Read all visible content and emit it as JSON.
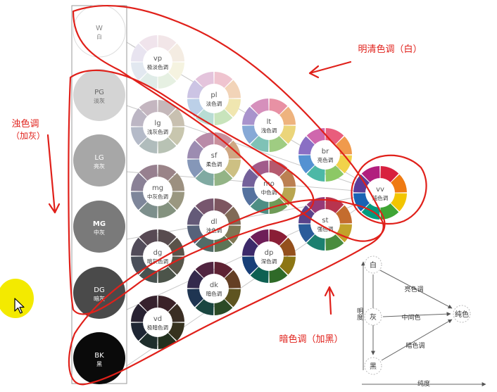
{
  "neutrals": [
    {
      "code": "W",
      "name": "白",
      "color": "#ffffff",
      "text_color": "#888888"
    },
    {
      "code": "PG",
      "name": "淡灰",
      "color": "#d4d4d4",
      "text_color": "#666666"
    },
    {
      "code": "LG",
      "name": "亮灰",
      "color": "#a7a7a7",
      "text_color": "#ffffff"
    },
    {
      "code": "MG",
      "name": "中灰",
      "color": "#7a7a7a",
      "text_color": "#ffffff"
    },
    {
      "code": "DG",
      "name": "暗灰",
      "color": "#4a4a4a",
      "text_color": "#ffffff"
    },
    {
      "code": "BK",
      "name": "黑",
      "color": "#0a0a0a",
      "text_color": "#ffffff"
    }
  ],
  "tones": [
    {
      "code": "vp",
      "name": "极淡色调",
      "palette": [
        "#f2e6e8",
        "#f4ece2",
        "#f5f3e0",
        "#e6f0e2",
        "#e0ece8",
        "#e2e8f0",
        "#e8e4f0",
        "#f0e4ec"
      ]
    },
    {
      "code": "pl",
      "name": "淡色调",
      "palette": [
        "#efc4cf",
        "#f2d4b8",
        "#f0e6b0",
        "#c8e4bc",
        "#b8dcd4",
        "#bcd0e8",
        "#ccc4e4",
        "#e4c4dc"
      ]
    },
    {
      "code": "lg",
      "name": "浅灰色调",
      "palette": [
        "#c4b8ba",
        "#c8c0b0",
        "#c8c6ae",
        "#b8c2b4",
        "#b0bcbc",
        "#b4bac8",
        "#bcb6c4",
        "#c4b6c0"
      ]
    },
    {
      "code": "lt",
      "name": "浅色调",
      "palette": [
        "#e891a4",
        "#eeb37e",
        "#ebd57a",
        "#9fcc82",
        "#7fc2b6",
        "#86a9d6",
        "#a993cc",
        "#d690bc"
      ]
    },
    {
      "code": "sf",
      "name": "柔色调",
      "palette": [
        "#c98f9b",
        "#cfa783",
        "#cdc083",
        "#93b486",
        "#80aaa2",
        "#8597b8",
        "#9c8cb1",
        "#b98ba8"
      ]
    },
    {
      "code": "mg",
      "name": "中灰色调",
      "palette": [
        "#9a8488",
        "#9c9080",
        "#9a9780",
        "#84927f",
        "#7d8f8c",
        "#7e869a",
        "#8a8196",
        "#97808f"
      ]
    },
    {
      "code": "br",
      "name": "亮色调",
      "palette": [
        "#e95d7c",
        "#f09a4c",
        "#f1d24a",
        "#8cc865",
        "#4db8a6",
        "#5492d2",
        "#8a6fc4",
        "#cf67ad"
      ]
    },
    {
      "code": "mo",
      "name": "中色调",
      "palette": [
        "#b55a6e",
        "#bb8052",
        "#b9a650",
        "#6f9b58",
        "#4e8e84",
        "#55729f",
        "#74619a",
        "#a15b8b"
      ]
    },
    {
      "code": "dl",
      "name": "浊色调",
      "palette": [
        "#7d5660",
        "#806a56",
        "#7e7754",
        "#5e7456",
        "#526c68",
        "#56627a",
        "#645a78",
        "#77566e"
      ]
    },
    {
      "code": "dg",
      "name": "暗灰色调",
      "palette": [
        "#584c4f",
        "#5a5349",
        "#58564a",
        "#4c544a",
        "#485250",
        "#4a4f5a",
        "#524c5a",
        "#584a54"
      ]
    },
    {
      "code": "vv",
      "name": "纯色调",
      "palette": [
        "#d8203e",
        "#ef7a12",
        "#f2c500",
        "#3fa535",
        "#009a7e",
        "#1a63b4",
        "#5b3b98",
        "#b11f7e"
      ]
    },
    {
      "code": "st",
      "name": "强色调",
      "palette": [
        "#b8344e",
        "#c46c2e",
        "#c2a22a",
        "#4a8c3e",
        "#1c8070",
        "#2a5c9a",
        "#5a428a",
        "#963a78"
      ]
    },
    {
      "code": "dp",
      "name": "深色调",
      "palette": [
        "#8a1e36",
        "#94501c",
        "#8c7614",
        "#2f6a28",
        "#0e6052",
        "#173f78",
        "#3c2a6a",
        "#6e1e58"
      ]
    },
    {
      "code": "dk",
      "name": "暗色调",
      "palette": [
        "#5e2233",
        "#643f24",
        "#5e5420",
        "#2c4a26",
        "#1a4640",
        "#1f3552",
        "#342a4c",
        "#502440"
      ]
    },
    {
      "code": "vd",
      "name": "极暗色调",
      "palette": [
        "#3a2228",
        "#3a2e24",
        "#36321e",
        "#22301e",
        "#1e2e2c",
        "#1e2634",
        "#282232",
        "#36222e"
      ]
    }
  ],
  "labels": {
    "bright": "明清色调（白）",
    "dull": "浊色调",
    "dull_sub": "（加灰）",
    "dark": "暗色调（加黑）"
  },
  "legend": {
    "white": "白",
    "gray": "灰",
    "black": "黑",
    "pure": "纯色",
    "bright_tone": "亮色调",
    "mid_tone": "中间色",
    "dark_tone": "暗色调",
    "lightness": "明度",
    "chroma": "纯度"
  },
  "annotation_color": "#e0201a"
}
